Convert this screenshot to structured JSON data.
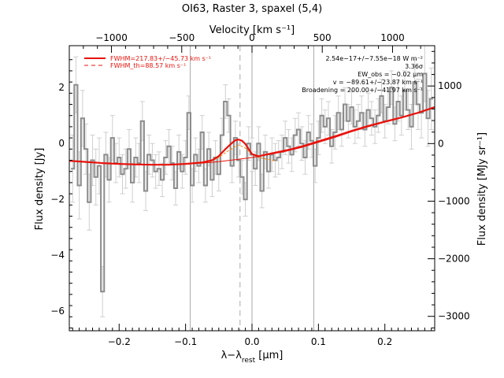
{
  "chart_data": {
    "type": "line",
    "title": "OI63, Raster 3, spaxel (5,4)",
    "xlabel_html": "λ−λ<tspan baseline-shift='sub' font-size='9'>rest</tspan> [μm]",
    "xlabel": "λ−λrest [μm]",
    "ylabel": "Flux density [Jy]",
    "top_xlabel": "Velocity [km s⁻¹]",
    "right_ylabel": "Flux density [MJy sr⁻¹]",
    "xlim": [
      -0.275,
      0.275
    ],
    "ylim": [
      -6.7,
      3.5
    ],
    "top_xlim": [
      -1300,
      1300
    ],
    "right_ylim": [
      -3250,
      1700
    ],
    "x_ticks": [
      -0.2,
      -0.1,
      0.0,
      0.1,
      0.2
    ],
    "x_tick_labels": [
      "−0.2",
      "−0.1",
      "0.0",
      "0.1",
      "0.2"
    ],
    "y_ticks": [
      -6,
      -4,
      -2,
      0,
      2
    ],
    "y_tick_labels": [
      "−6",
      "−4",
      "−2",
      "0",
      "2"
    ],
    "top_ticks": [
      -1000,
      -500,
      0,
      500,
      1000
    ],
    "top_tick_labels": [
      "−1000",
      "−500",
      "0",
      "500",
      "1000"
    ],
    "right_ticks": [
      -3000,
      -2000,
      -1000,
      0,
      1000
    ],
    "right_tick_labels": [
      "−3000",
      "−2000",
      "−1000",
      "0",
      "1000"
    ],
    "vlines_solid": [
      -0.093,
      0.0,
      0.093
    ],
    "vline_dashed": -0.018,
    "colors": {
      "data": "#999999",
      "fit": "#e8120b",
      "baseline": "#e8120b",
      "gauss": "#ff7f00",
      "grid": "#999999"
    },
    "legend": [
      {
        "label": "FWHM=217.83+/−45.73 km s⁻¹",
        "style": "solid"
      },
      {
        "label": "FWHM_th=88.57 km s⁻¹",
        "style": "dashed"
      }
    ],
    "annotations": [
      "2.54e−17+/−7.55e−18 W m⁻²",
      "3.36σ",
      "EW_obs = −0.02 μm",
      "v = −89.61+/−23.87 km s⁻¹",
      "Broadening = 200.00+/−41.97 km s⁻¹"
    ],
    "series": [
      {
        "name": "data",
        "x": [
          -0.27,
          -0.265,
          -0.26,
          -0.255,
          -0.25,
          -0.245,
          -0.24,
          -0.235,
          -0.23,
          -0.225,
          -0.22,
          -0.215,
          -0.21,
          -0.205,
          -0.2,
          -0.195,
          -0.19,
          -0.185,
          -0.18,
          -0.175,
          -0.17,
          -0.165,
          -0.16,
          -0.155,
          -0.15,
          -0.145,
          -0.14,
          -0.135,
          -0.13,
          -0.125,
          -0.12,
          -0.115,
          -0.11,
          -0.105,
          -0.1,
          -0.095,
          -0.09,
          -0.085,
          -0.08,
          -0.075,
          -0.07,
          -0.065,
          -0.06,
          -0.055,
          -0.05,
          -0.045,
          -0.04,
          -0.035,
          -0.03,
          -0.025,
          -0.02,
          -0.015,
          -0.01,
          -0.005,
          0.0,
          0.005,
          0.01,
          0.015,
          0.02,
          0.025,
          0.03,
          0.035,
          0.04,
          0.045,
          0.05,
          0.055,
          0.06,
          0.065,
          0.07,
          0.075,
          0.08,
          0.085,
          0.09,
          0.095,
          0.1,
          0.105,
          0.11,
          0.115,
          0.12,
          0.125,
          0.13,
          0.135,
          0.14,
          0.145,
          0.15,
          0.155,
          0.16,
          0.165,
          0.17,
          0.175,
          0.18,
          0.185,
          0.19,
          0.195,
          0.2,
          0.205,
          0.21,
          0.215,
          0.22,
          0.225,
          0.23,
          0.235,
          0.24,
          0.245,
          0.25,
          0.255,
          0.26,
          0.265,
          0.27
        ],
        "y": [
          -0.9,
          2.1,
          -1.5,
          0.9,
          -0.2,
          -2.1,
          -0.6,
          -1.2,
          -0.8,
          -5.3,
          -0.4,
          -1.3,
          0.2,
          -0.7,
          -0.5,
          -1.1,
          -0.9,
          -0.2,
          -1.4,
          -0.5,
          -0.7,
          0.8,
          -1.7,
          -0.4,
          -0.6,
          -1.0,
          -0.9,
          -1.3,
          -0.5,
          -0.1,
          -0.7,
          -1.6,
          -0.3,
          -1.0,
          -0.5,
          1.1,
          -1.5,
          -0.4,
          -0.8,
          0.4,
          -1.5,
          -0.2,
          -1.3,
          -0.5,
          -1.1,
          0.3,
          1.5,
          1.0,
          -0.8,
          0.2,
          -0.6,
          -1.2,
          -2.0,
          0.0,
          -0.4,
          -0.9,
          0.0,
          -1.7,
          -0.3,
          -1.0,
          -0.4,
          -0.6,
          -0.5,
          -0.3,
          0.2,
          -0.1,
          -0.4,
          0.3,
          0.5,
          0.0,
          -0.5,
          0.4,
          0.1,
          -0.8,
          0.2,
          1.0,
          0.6,
          0.9,
          -0.1,
          0.4,
          1.1,
          0.5,
          1.4,
          0.8,
          1.3,
          0.6,
          0.8,
          1.1,
          0.5,
          1.2,
          0.9,
          0.6,
          1.0,
          1.7,
          0.8,
          1.3,
          2.0,
          0.7,
          1.5,
          1.0,
          1.9,
          1.2,
          0.6,
          2.2,
          1.4,
          1.1,
          2.5,
          0.9,
          1.6
        ],
        "err": [
          1.2,
          1.0,
          1.2,
          1.0,
          0.9,
          1.0,
          0.9,
          1.0,
          1.0,
          0.9,
          0.8,
          0.8,
          0.8,
          0.7,
          0.7,
          0.7,
          0.7,
          0.7,
          0.7,
          0.7,
          0.7,
          0.7,
          0.7,
          0.7,
          0.6,
          0.6,
          0.6,
          0.6,
          0.6,
          0.6,
          0.6,
          0.6,
          0.6,
          0.6,
          0.6,
          0.6,
          0.6,
          0.6,
          0.6,
          0.6,
          0.6,
          0.6,
          0.6,
          0.6,
          0.6,
          0.6,
          0.6,
          0.6,
          0.6,
          0.6,
          0.6,
          0.6,
          0.6,
          0.6,
          0.6,
          0.6,
          0.6,
          0.6,
          0.6,
          0.6,
          0.6,
          0.6,
          0.6,
          0.6,
          0.6,
          0.6,
          0.6,
          0.6,
          0.6,
          0.6,
          0.6,
          0.6,
          0.6,
          0.6,
          0.6,
          0.6,
          0.6,
          0.6,
          0.6,
          0.6,
          0.6,
          0.6,
          0.6,
          0.6,
          0.6,
          0.6,
          0.6,
          0.6,
          0.6,
          0.6,
          0.6,
          0.6,
          0.6,
          0.6,
          0.6,
          0.6,
          0.6,
          0.6,
          0.7,
          0.7,
          0.7,
          0.7,
          0.8,
          0.8,
          0.9,
          0.9,
          1.0,
          1.0,
          1.1
        ]
      },
      {
        "name": "total fit",
        "x": [
          -0.275,
          -0.25,
          -0.225,
          -0.2,
          -0.175,
          -0.15,
          -0.125,
          -0.1,
          -0.075,
          -0.06,
          -0.05,
          -0.04,
          -0.03,
          -0.025,
          -0.02,
          -0.015,
          -0.01,
          -0.005,
          0.0,
          0.01,
          0.02,
          0.04,
          0.06,
          0.08,
          0.1,
          0.125,
          0.15,
          0.175,
          0.2,
          0.225,
          0.25,
          0.275
        ],
        "y": [
          -0.62,
          -0.66,
          -0.7,
          -0.73,
          -0.75,
          -0.76,
          -0.76,
          -0.73,
          -0.68,
          -0.6,
          -0.45,
          -0.2,
          0.02,
          0.12,
          0.14,
          0.1,
          -0.02,
          -0.2,
          -0.38,
          -0.46,
          -0.4,
          -0.3,
          -0.2,
          -0.07,
          0.08,
          0.26,
          0.45,
          0.63,
          0.78,
          0.93,
          1.1,
          1.3
        ]
      },
      {
        "name": "baseline",
        "x": [
          -0.275,
          -0.25,
          -0.225,
          -0.2,
          -0.175,
          -0.15,
          -0.125,
          -0.1,
          -0.075,
          -0.05,
          -0.025,
          0.0,
          0.025,
          0.05,
          0.075,
          0.1,
          0.125,
          0.15,
          0.175,
          0.2,
          0.225,
          0.25,
          0.275
        ],
        "y": [
          -0.62,
          -0.66,
          -0.7,
          -0.73,
          -0.75,
          -0.76,
          -0.76,
          -0.74,
          -0.7,
          -0.65,
          -0.58,
          -0.5,
          -0.4,
          -0.28,
          -0.14,
          0.04,
          0.22,
          0.42,
          0.6,
          0.76,
          0.92,
          1.1,
          1.3
        ]
      },
      {
        "name": "gaussian",
        "x": [
          -0.075,
          -0.06,
          -0.05,
          -0.04,
          -0.03,
          -0.025,
          -0.02,
          -0.015,
          -0.01,
          -0.005,
          0.0,
          0.01,
          0.02,
          0.035
        ],
        "y": [
          -0.7,
          -0.62,
          -0.5,
          -0.33,
          -0.17,
          -0.1,
          -0.06,
          -0.1,
          -0.17,
          -0.27,
          -0.38,
          -0.5,
          -0.55,
          -0.62
        ]
      }
    ]
  }
}
